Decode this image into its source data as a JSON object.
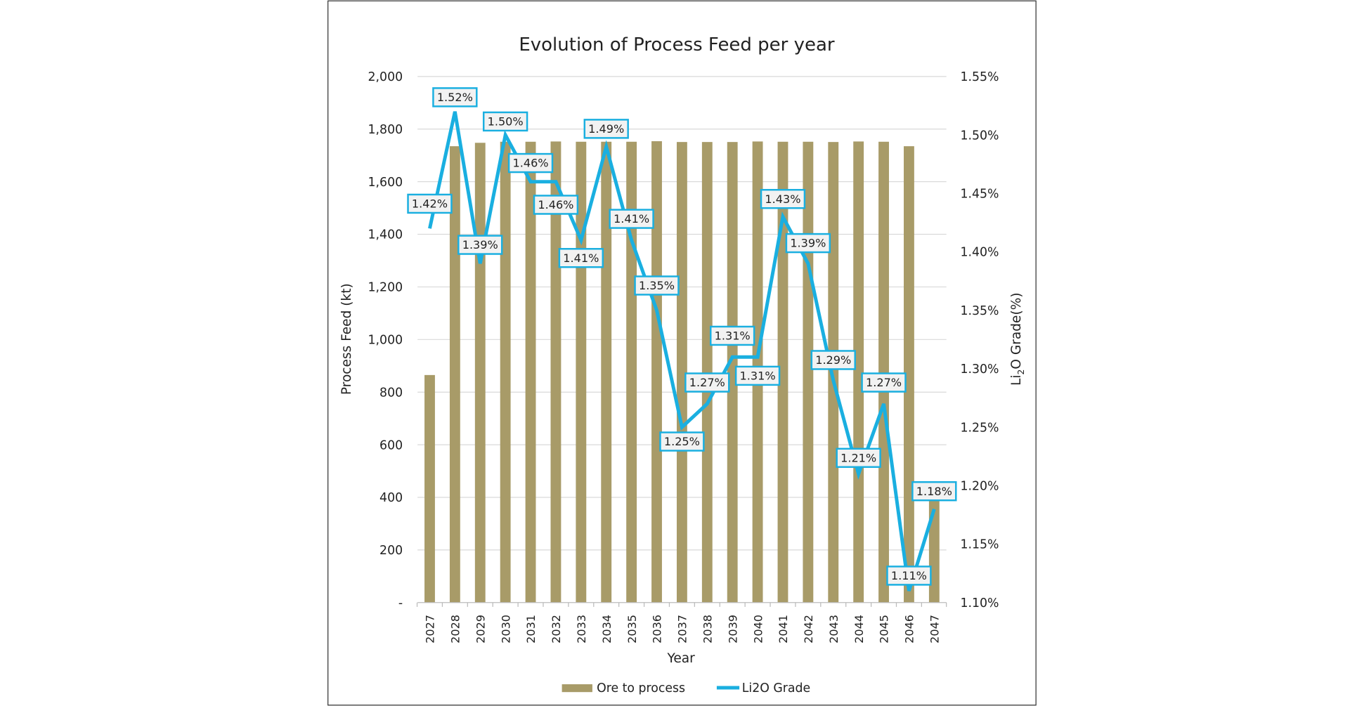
{
  "chart_data": {
    "type": "bar+line",
    "title": "Evolution of Process Feed per year",
    "xlabel": "Year",
    "ylabel": "Process Feed (kt)",
    "y2label_main": "Li",
    "y2label_sub": "2",
    "y2label_rest": "O Grade(%)",
    "categories": [
      "2027",
      "2028",
      "2029",
      "2030",
      "2031",
      "2032",
      "2033",
      "2034",
      "2035",
      "2036",
      "2037",
      "2038",
      "2039",
      "2040",
      "2041",
      "2042",
      "2043",
      "2044",
      "2045",
      "2046",
      "2047"
    ],
    "ylim": [
      0,
      2000
    ],
    "y_ticks": [
      "-",
      "200",
      "400",
      "600",
      "800",
      "1,000",
      "1,200",
      "1,400",
      "1,600",
      "1,800",
      "2,000"
    ],
    "y2lim": [
      1.1,
      1.55
    ],
    "y2_ticks": [
      "1.10%",
      "1.15%",
      "1.20%",
      "1.25%",
      "1.30%",
      "1.35%",
      "1.40%",
      "1.45%",
      "1.50%",
      "1.55%"
    ],
    "grid": true,
    "legend_position": "bottom",
    "series": [
      {
        "name": "Ore to process",
        "type": "bar",
        "axis": "left",
        "color": "#A89B68",
        "values": [
          865,
          1735,
          1748,
          1752,
          1752,
          1753,
          1752,
          1752,
          1752,
          1754,
          1751,
          1751,
          1751,
          1753,
          1752,
          1752,
          1751,
          1753,
          1752,
          1735,
          400
        ]
      },
      {
        "name": "Li2O Grade",
        "type": "line",
        "axis": "right",
        "color": "#1AAFE0",
        "values": [
          1.42,
          1.52,
          1.39,
          1.5,
          1.46,
          1.46,
          1.41,
          1.49,
          1.41,
          1.35,
          1.25,
          1.27,
          1.31,
          1.31,
          1.43,
          1.39,
          1.29,
          1.21,
          1.27,
          1.11,
          1.18
        ],
        "labels": [
          "1.42%",
          "1.52%",
          "1.39%",
          "1.50%",
          "1.46%",
          "1.46%",
          "1.41%",
          "1.49%",
          "1.41%",
          "1.35%",
          "1.25%",
          "1.27%",
          "1.31%",
          "1.31%",
          "1.43%",
          "1.39%",
          "1.29%",
          "1.21%",
          "1.27%",
          "1.11%",
          "1.18%"
        ]
      }
    ]
  }
}
